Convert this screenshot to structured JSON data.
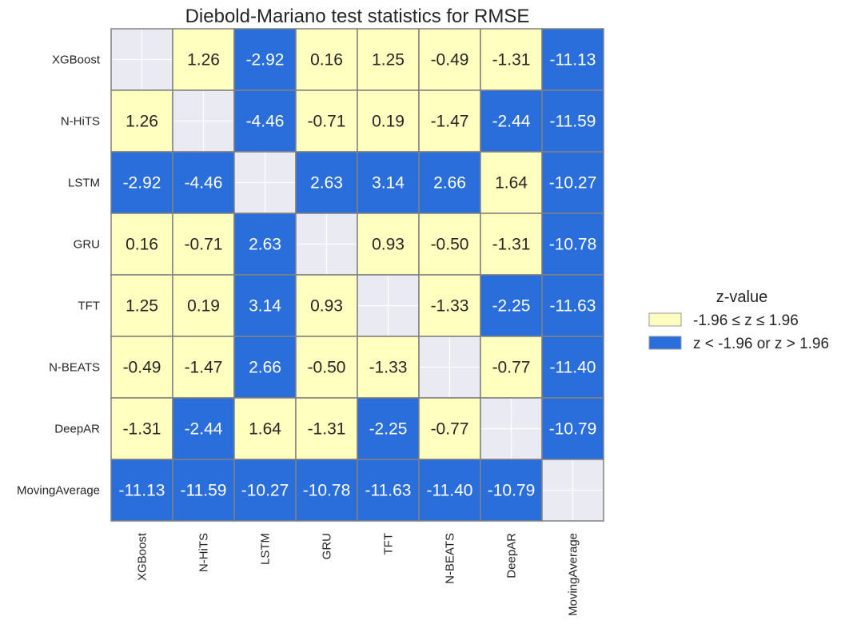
{
  "chart_data": {
    "type": "heatmap",
    "title": "Diebold-Mariano test statistics for RMSE",
    "xlabel": "",
    "ylabel": "",
    "rows": [
      "XGBoost",
      "N-HiTS",
      "LSTM",
      "GRU",
      "TFT",
      "N-BEATS",
      "DeepAR",
      "MovingAverage"
    ],
    "columns": [
      "XGBoost",
      "N-HiTS",
      "LSTM",
      "GRU",
      "TFT",
      "N-BEATS",
      "DeepAR",
      "MovingAverage"
    ],
    "values": [
      [
        null,
        1.26,
        -2.92,
        0.16,
        1.25,
        -0.49,
        -1.31,
        -11.13
      ],
      [
        1.26,
        null,
        -4.46,
        -0.71,
        0.19,
        -1.47,
        -2.44,
        -11.59
      ],
      [
        -2.92,
        -4.46,
        null,
        2.63,
        3.14,
        2.66,
        1.64,
        -10.27
      ],
      [
        0.16,
        -0.71,
        2.63,
        null,
        0.93,
        -0.5,
        -1.31,
        -10.78
      ],
      [
        1.25,
        0.19,
        3.14,
        0.93,
        null,
        -1.33,
        -2.25,
        -11.63
      ],
      [
        -0.49,
        -1.47,
        2.66,
        -0.5,
        -1.33,
        null,
        -0.77,
        -11.4
      ],
      [
        -1.31,
        -2.44,
        1.64,
        -1.31,
        -2.25,
        -0.77,
        null,
        -10.79
      ],
      [
        -11.13,
        -11.59,
        -10.27,
        -10.78,
        -11.63,
        -11.4,
        -10.79,
        null
      ]
    ],
    "threshold": 1.96,
    "legend": {
      "title": "z-value",
      "placement": "right",
      "entries": [
        {
          "label": "-1.96 ≤ z ≤ 1.96",
          "color": "#ffffc0"
        },
        {
          "label": "z < -1.96 or z > 1.96",
          "color": "#2a6edc"
        }
      ]
    },
    "colors": {
      "insignificant": "#ffffc0",
      "significant": "#2a6edc",
      "diagonal": "#eaeaf2",
      "border": "#808080",
      "text_dark": "#262626",
      "text_light": "#ffffff"
    },
    "grid": true
  }
}
